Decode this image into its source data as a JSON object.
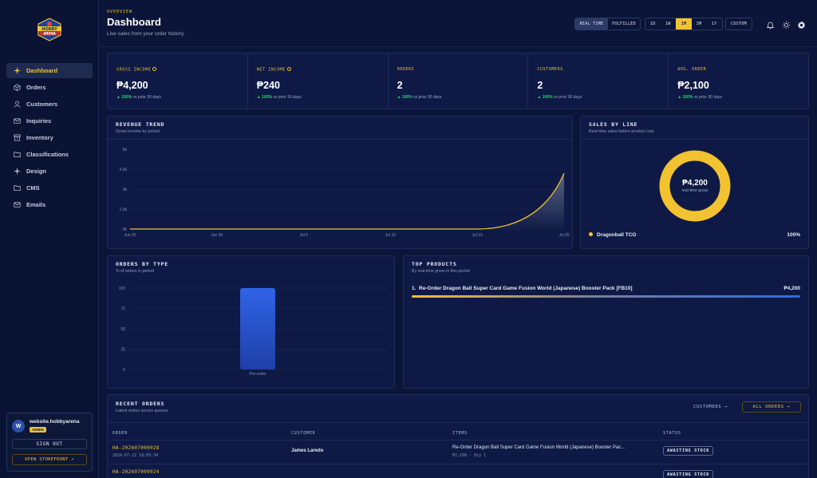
{
  "app": {
    "logo_text": "HOBBY ARENA"
  },
  "sidebar": {
    "items": [
      {
        "label": "Dashboard",
        "icon": "sparkle-icon"
      },
      {
        "label": "Orders",
        "icon": "box-icon"
      },
      {
        "label": "Customers",
        "icon": "user-icon"
      },
      {
        "label": "Inquiries",
        "icon": "mail-icon"
      },
      {
        "label": "Inventory",
        "icon": "archive-icon"
      },
      {
        "label": "Classifications",
        "icon": "folder-icon"
      },
      {
        "label": "Design",
        "icon": "sparkle-icon"
      },
      {
        "label": "CMS",
        "icon": "folder-icon"
      },
      {
        "label": "Emails",
        "icon": "mail-icon"
      }
    ],
    "user": {
      "avatar": "W",
      "name": "website.hobbyarena",
      "role": "ADMIN"
    },
    "sign_out": "SIGN OUT",
    "open_storefront": "OPEN STOREFRONT ↗"
  },
  "header": {
    "eyebrow": "OVERVIEW",
    "title": "Dashboard",
    "subtitle": "Live sales from your order history.",
    "mode_tabs": [
      "REAL TIME",
      "FULFILLED"
    ],
    "range_tabs": [
      "1D",
      "1W",
      "1M",
      "3M",
      "1Y"
    ],
    "active_range": "1M",
    "custom": "CUSTOM"
  },
  "kpis": [
    {
      "label": "GROSS INCOME",
      "value": "₱4,200",
      "delta": "▲ 100%",
      "delta_text": "vs prior 30 days",
      "info": true
    },
    {
      "label": "NET INCOME",
      "value": "₱240",
      "delta": "▲ 100%",
      "delta_text": "vs prior 30 days",
      "info": true
    },
    {
      "label": "ORDERS",
      "value": "2",
      "delta": "▲ 100%",
      "delta_text": "vs prior 30 days"
    },
    {
      "label": "CUSTOMERS",
      "value": "2",
      "delta": "▲ 100%",
      "delta_text": "vs prior 30 days"
    },
    {
      "label": "AVG. ORDER",
      "value": "₱2,100",
      "delta": "▲ 100%",
      "delta_text": "vs prior 30 days"
    }
  ],
  "revenue": {
    "title": "REVENUE TREND",
    "subtitle": "Gross income by period"
  },
  "sales_by_line": {
    "title": "SALES BY LINE",
    "subtitle": "Real-time sales before product cost",
    "center_value": "₱4,200",
    "center_label": "real-time gross",
    "legend_name": "Dragonball TCG",
    "legend_pct": "100%"
  },
  "orders_by_type": {
    "title": "ORDERS BY TYPE",
    "subtitle": "% of orders in period"
  },
  "top_products": {
    "title": "TOP PRODUCTS",
    "subtitle": "By real-time gross in this period",
    "items": [
      {
        "rank": "1.",
        "name": "Re-Order Dragon Ball Super Card Game Fusion World (Japanese) Booster Pack [FB10]",
        "value": "₱4,200"
      }
    ]
  },
  "recent_orders": {
    "title": "RECENT ORDERS",
    "subtitle": "Latest orders across queues",
    "customers_btn": "CUSTOMERS →",
    "all_orders_btn": "ALL ORDERS →",
    "columns": [
      "ORDER",
      "CUSTOMER",
      "ITEMS",
      "STATUS"
    ],
    "rows": [
      {
        "order_id": "HA-202607000028",
        "date": "2026-07-22 18:05:34",
        "customer": "James Laredo",
        "items": "Re-Order Dragon Ball Super Card Game Fusion World (Japanese) Booster Pac...",
        "items_sub": "₱2,100 · Qty 1",
        "status": "AWAITING STOCK"
      },
      {
        "order_id": "HA-202607000024",
        "status": "AWAITING STOCK"
      }
    ]
  },
  "colors": {
    "accent": "#f2c230",
    "positive": "#33d17a",
    "bar": "#2f5fdc",
    "bg": "#0b1539"
  },
  "chart_data": [
    {
      "type": "area",
      "title": "REVENUE TREND",
      "subtitle": "Gross income by period",
      "x": [
        "Jun 25",
        "Jun 30",
        "Jul 5",
        "Jul 10",
        "Jul 15",
        "Jul 20"
      ],
      "series": [
        {
          "values": [
            0,
            0,
            0,
            0,
            0,
            4200
          ]
        }
      ],
      "ylim": [
        0,
        6000
      ],
      "yticks": [
        "0k",
        "1.5k",
        "3k",
        "4.5k",
        "6k"
      ],
      "grid": true
    },
    {
      "type": "pie",
      "title": "SALES BY LINE",
      "slices": [
        {
          "label": "Dragonball TCG",
          "value": 100
        }
      ]
    },
    {
      "type": "bar",
      "title": "ORDERS BY TYPE",
      "categories": [
        "Pre-order"
      ],
      "values": [
        100
      ],
      "ylim": [
        0,
        100
      ],
      "yticks": [
        "0",
        "25",
        "50",
        "75",
        "100"
      ]
    }
  ]
}
